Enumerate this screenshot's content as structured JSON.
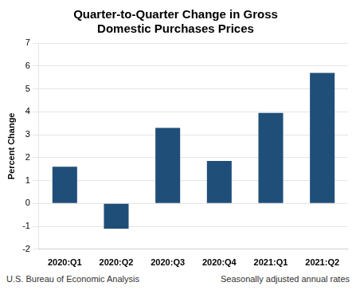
{
  "chart_data": {
    "type": "bar",
    "title": "Quarter-to-Quarter Change in Gross\nDomestic Purchases Prices",
    "ylabel": "Percent Change",
    "categories": [
      "2020:Q1",
      "2020:Q2",
      "2020:Q3",
      "2020:Q4",
      "2021:Q1",
      "2021:Q2"
    ],
    "values": [
      1.6,
      -1.1,
      3.3,
      1.85,
      3.95,
      5.7
    ],
    "color": "#1F4E79",
    "ylim": [
      -2,
      7
    ],
    "yticks": [
      -2,
      -1,
      0,
      1,
      2,
      3,
      4,
      5,
      6,
      7
    ],
    "grid": true,
    "annotations": [
      "U.S. Bureau of Economic Analysis",
      "Seasonally adjusted annual rates"
    ]
  }
}
